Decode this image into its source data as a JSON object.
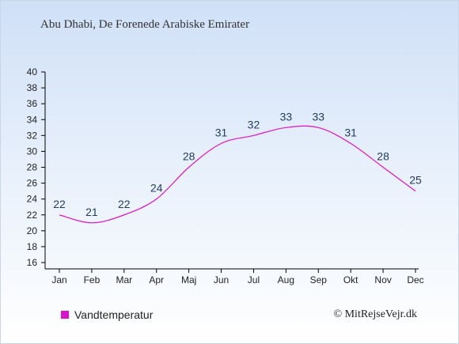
{
  "header": {
    "title": "Abu Dhabi, De Forenede Arabiske Emirater"
  },
  "legend": {
    "label": "Vandtemperatur",
    "color": "#dd11cc"
  },
  "footer": {
    "credit": "© MitRejseVejr.dk"
  },
  "chart_data": {
    "type": "line",
    "categories": [
      "Jan",
      "Feb",
      "Mar",
      "Apr",
      "Maj",
      "Jun",
      "Jul",
      "Aug",
      "Sep",
      "Okt",
      "Nov",
      "Dec"
    ],
    "series": [
      {
        "name": "Vandtemperatur",
        "color": "#dd11cc",
        "values": [
          22,
          21,
          22,
          24,
          28,
          31,
          32,
          33,
          33,
          31,
          28,
          25
        ]
      }
    ],
    "ylim": [
      16,
      40
    ],
    "yticks": [
      16,
      18,
      20,
      22,
      24,
      26,
      28,
      30,
      32,
      34,
      36,
      38,
      40
    ],
    "legend_position": "bottom-left",
    "grid": false
  }
}
